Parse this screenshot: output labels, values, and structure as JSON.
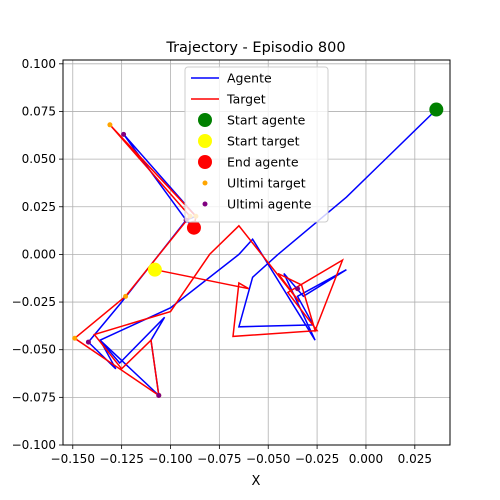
{
  "chart_data": {
    "type": "line",
    "title": "Trajectory - Episodio 800",
    "xlabel": "X",
    "ylabel": "",
    "xlim": [
      -0.155,
      0.043
    ],
    "ylim": [
      -0.1,
      0.102
    ],
    "xticks": [
      -0.15,
      -0.125,
      -0.1,
      -0.075,
      -0.05,
      -0.025,
      0.0,
      0.025
    ],
    "xtick_labels": [
      "−0.150",
      "−0.125",
      "−0.100",
      "−0.075",
      "−0.050",
      "−0.025",
      "0.000",
      "0.025"
    ],
    "yticks": [
      -0.1,
      -0.075,
      -0.05,
      -0.025,
      0.0,
      0.025,
      0.05,
      0.075,
      0.1
    ],
    "ytick_labels": [
      "−0.100",
      "−0.075",
      "−0.050",
      "−0.025",
      "0.000",
      "0.025",
      "0.050",
      "0.075",
      "0.100"
    ],
    "grid": true,
    "legend_position": "top-center",
    "series": [
      {
        "name": "Agente",
        "kind": "line",
        "color": "#0000ff",
        "points": [
          [
            0.036,
            0.076
          ],
          [
            -0.01,
            0.03
          ],
          [
            -0.045,
            0.0
          ],
          [
            -0.058,
            -0.012
          ],
          [
            -0.065,
            -0.038
          ],
          [
            -0.027,
            -0.037
          ],
          [
            -0.035,
            -0.022
          ],
          [
            -0.01,
            -0.008
          ],
          [
            -0.032,
            -0.022
          ],
          [
            -0.042,
            -0.01
          ],
          [
            -0.026,
            -0.045
          ],
          [
            -0.058,
            0.008
          ],
          [
            -0.065,
            0.0
          ],
          [
            -0.1,
            -0.028
          ],
          [
            -0.136,
            -0.045
          ],
          [
            -0.126,
            -0.057
          ],
          [
            -0.103,
            -0.033
          ],
          [
            -0.11,
            -0.045
          ],
          [
            -0.106,
            -0.074
          ],
          [
            -0.136,
            -0.045
          ],
          [
            -0.128,
            -0.06
          ],
          [
            -0.142,
            -0.046
          ],
          [
            -0.125,
            -0.025
          ],
          [
            -0.092,
            0.018
          ],
          [
            -0.087,
            0.02
          ],
          [
            -0.124,
            0.063
          ],
          [
            -0.092,
            0.018
          ],
          [
            -0.088,
            0.014
          ]
        ]
      },
      {
        "name": "Target",
        "kind": "line",
        "color": "#ff0000",
        "points": [
          [
            -0.108,
            -0.008
          ],
          [
            -0.06,
            -0.018
          ],
          [
            -0.065,
            -0.015
          ],
          [
            -0.068,
            -0.043
          ],
          [
            -0.025,
            -0.04
          ],
          [
            -0.04,
            -0.02
          ],
          [
            -0.012,
            -0.003
          ],
          [
            -0.026,
            -0.04
          ],
          [
            -0.033,
            -0.016
          ],
          [
            -0.045,
            -0.01
          ],
          [
            -0.034,
            -0.025
          ],
          [
            -0.065,
            0.015
          ],
          [
            -0.08,
            0.0
          ],
          [
            -0.1,
            -0.03
          ],
          [
            -0.139,
            -0.042
          ],
          [
            -0.125,
            -0.06
          ],
          [
            -0.11,
            -0.045
          ],
          [
            -0.106,
            -0.074
          ],
          [
            -0.149,
            -0.044
          ],
          [
            -0.123,
            -0.022
          ],
          [
            -0.09,
            0.02
          ],
          [
            -0.131,
            0.068
          ],
          [
            -0.087,
            0.02
          ],
          [
            -0.088,
            0.014
          ]
        ]
      },
      {
        "name": "Start agente",
        "kind": "scatter",
        "color": "#008000",
        "marker_size": 7,
        "points": [
          [
            0.036,
            0.076
          ]
        ]
      },
      {
        "name": "Start target",
        "kind": "scatter",
        "color": "#ffff00",
        "marker_size": 7,
        "points": [
          [
            -0.108,
            -0.008
          ]
        ]
      },
      {
        "name": "End agente",
        "kind": "scatter",
        "color": "#ff0000",
        "marker_size": 7,
        "points": [
          [
            -0.088,
            0.014
          ]
        ]
      },
      {
        "name": "Ultimi target",
        "kind": "scatter",
        "color": "#ffa500",
        "marker_size": 2.5,
        "points": [
          [
            -0.131,
            0.068
          ],
          [
            -0.09,
            0.02
          ],
          [
            -0.087,
            0.02
          ],
          [
            -0.123,
            -0.022
          ],
          [
            -0.149,
            -0.044
          ],
          [
            -0.106,
            -0.074
          ]
        ]
      },
      {
        "name": "Ultimi agente",
        "kind": "scatter",
        "color": "#800080",
        "marker_size": 2.5,
        "points": [
          [
            -0.124,
            0.063
          ],
          [
            -0.092,
            0.018
          ],
          [
            -0.142,
            -0.046
          ],
          [
            -0.106,
            -0.074
          ],
          [
            -0.035,
            -0.018
          ]
        ]
      }
    ]
  }
}
